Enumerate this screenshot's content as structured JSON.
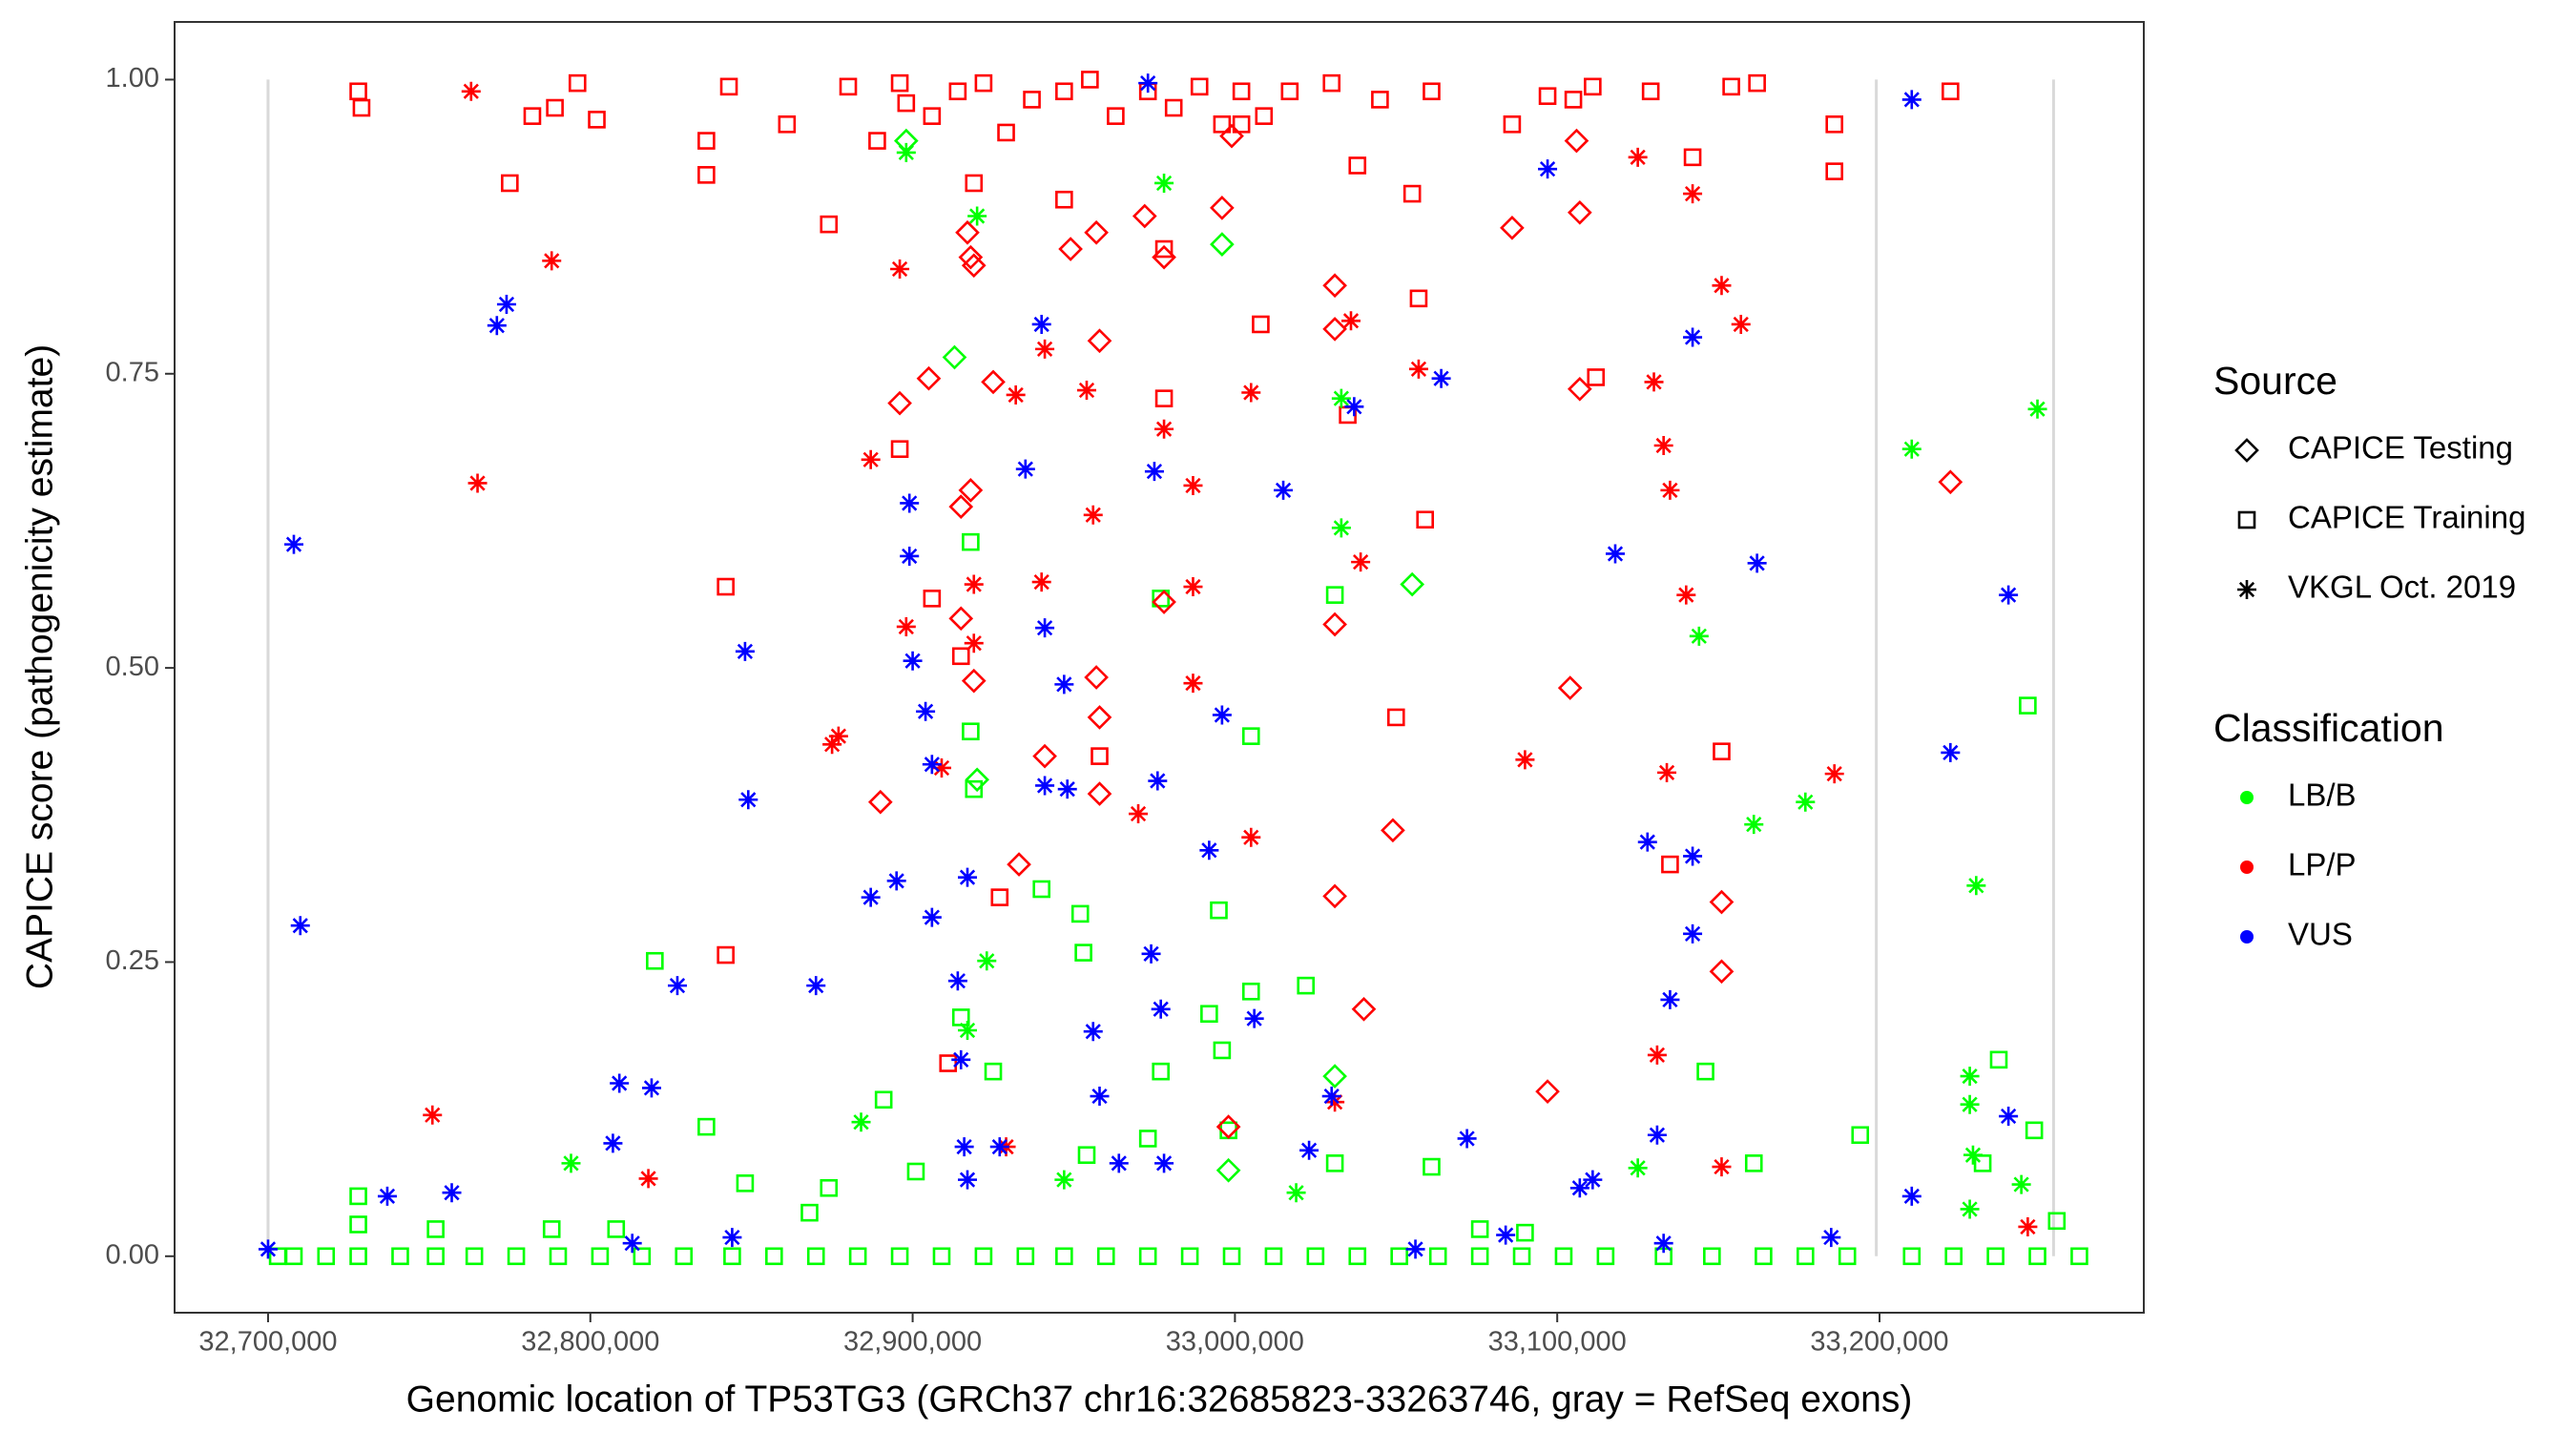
{
  "chart_data": {
    "type": "scatter",
    "x_label": "Genomic location of TP53TG3 (GRCh37 chr16:32685823-33263746, gray = RefSeq exons)",
    "y_label": "CAPICE score (pathogenicity estimate)",
    "xlim": [
      32671000,
      33282000
    ],
    "ylim": [
      -0.048,
      1.049
    ],
    "xticks": [
      {
        "value": 32700000,
        "label": "32,700,000"
      },
      {
        "value": 32800000,
        "label": "32,800,000"
      },
      {
        "value": 32900000,
        "label": "32,900,000"
      },
      {
        "value": 33000000,
        "label": "33,000,000"
      },
      {
        "value": 33100000,
        "label": "33,100,000"
      },
      {
        "value": 33200000,
        "label": "33,200,000"
      }
    ],
    "yticks": [
      {
        "value": 0,
        "label": "0.00"
      },
      {
        "value": 0.25,
        "label": "0.25"
      },
      {
        "value": 0.5,
        "label": "0.50"
      },
      {
        "value": 0.75,
        "label": "0.75"
      },
      {
        "value": 1,
        "label": "1.00"
      }
    ],
    "exons": [
      32700000,
      33199000,
      33254000
    ],
    "exon_color": "#d9d9d9",
    "legend": [
      {
        "title": "Source",
        "items": [
          {
            "label": "CAPICE Testing",
            "shape": "diamond"
          },
          {
            "label": "CAPICE Training",
            "shape": "square"
          },
          {
            "label": "VKGL Oct. 2019",
            "shape": "asterisk"
          }
        ]
      },
      {
        "title": "Classification",
        "items": [
          {
            "label": "LB/B",
            "color": "#00ff00"
          },
          {
            "label": "LP/P",
            "color": "#ff0000"
          },
          {
            "label": "VUS",
            "color": "#0000ff"
          }
        ]
      }
    ],
    "series": [
      {
        "shape": "square",
        "color": "#ff0000",
        "x": [
          32728000,
          32729000,
          32775000,
          32782000,
          32789000,
          32796000,
          32802000,
          32836000,
          32836000,
          32843000,
          32861000,
          32874000,
          32880000,
          32889000,
          32896000,
          32898000,
          32906000,
          32914000,
          32922000,
          32929000,
          32937000,
          32947000,
          32955000,
          32963000,
          32973000,
          32981000,
          32989000,
          32996000,
          33002000,
          33009000,
          33017000,
          33030000,
          33038000,
          33045000,
          33055000,
          33061000,
          33086000,
          33097000,
          33111000,
          33129000,
          33154000,
          33162000,
          33186000,
          33186000,
          33222000,
          32842000,
          32842000,
          32896000,
          32906000,
          32915000,
          32927000,
          32958000,
          32978000,
          33008000,
          33035000,
          33057000,
          33059000,
          33050000,
          33112000,
          33135000,
          33151000,
          33142000,
          33105000,
          32911000,
          32919000,
          32947000,
          32978000,
          33002000
        ],
        "y": [
          0.99,
          0.976,
          0.912,
          0.969,
          0.976,
          0.997,
          0.966,
          0.948,
          0.919,
          0.994,
          0.962,
          0.877,
          0.994,
          0.948,
          0.997,
          0.98,
          0.969,
          0.99,
          0.997,
          0.955,
          0.983,
          0.99,
          1.0,
          0.969,
          0.99,
          0.976,
          0.994,
          0.962,
          0.99,
          0.969,
          0.99,
          0.997,
          0.927,
          0.983,
          0.903,
          0.99,
          0.962,
          0.986,
          0.994,
          0.99,
          0.994,
          0.997,
          0.962,
          0.922,
          0.99,
          0.569,
          0.256,
          0.686,
          0.559,
          0.51,
          0.305,
          0.425,
          0.729,
          0.792,
          0.715,
          0.814,
          0.626,
          0.458,
          0.747,
          0.333,
          0.429,
          0.934,
          0.983,
          0.164,
          0.912,
          0.898,
          0.856,
          0.962
        ]
      },
      {
        "shape": "square",
        "color": "#00ff00",
        "x": [
          32703000,
          32708000,
          32718000,
          32728000,
          32741000,
          32752000,
          32764000,
          32777000,
          32790000,
          32803000,
          32816000,
          32829000,
          32844000,
          32857000,
          32870000,
          32883000,
          32896000,
          32909000,
          32922000,
          32935000,
          32947000,
          32960000,
          32973000,
          32986000,
          32999000,
          33012000,
          33025000,
          33038000,
          33051000,
          33063000,
          33076000,
          33089000,
          33102000,
          33115000,
          33133000,
          33148000,
          33164000,
          33177000,
          33190000,
          33210000,
          33223000,
          33236000,
          33249000,
          33262000,
          32728000,
          32728000,
          32752000,
          32788000,
          32808000,
          32820000,
          32836000,
          32848000,
          32868000,
          32874000,
          32891000,
          32901000,
          32915000,
          32918000,
          32919000,
          32925000,
          32940000,
          32952000,
          32953000,
          32954000,
          32973000,
          32977000,
          32992000,
          32995000,
          32996000,
          32998000,
          33005000,
          33005000,
          33022000,
          33031000,
          33031000,
          33061000,
          33076000,
          33090000,
          33146000,
          33161000,
          33194000,
          33232000,
          33237000,
          33246000,
          33248000,
          33255000,
          32977000,
          32918000
        ],
        "y": [
          0,
          0,
          0,
          0,
          0,
          0,
          0,
          0,
          0,
          0,
          0,
          0,
          0,
          0,
          0,
          0,
          0,
          0,
          0,
          0,
          0,
          0,
          0,
          0,
          0,
          0,
          0,
          0,
          0,
          0,
          0,
          0,
          0,
          0,
          0,
          0,
          0,
          0,
          0,
          0,
          0,
          0,
          0,
          0,
          0.051,
          0.027,
          0.023,
          0.023,
          0.023,
          0.251,
          0.11,
          0.062,
          0.037,
          0.058,
          0.133,
          0.072,
          0.203,
          0.446,
          0.397,
          0.157,
          0.312,
          0.291,
          0.258,
          0.086,
          0.1,
          0.157,
          0.206,
          0.294,
          0.175,
          0.107,
          0.442,
          0.225,
          0.23,
          0.562,
          0.079,
          0.076,
          0.023,
          0.02,
          0.157,
          0.079,
          0.103,
          0.079,
          0.167,
          0.468,
          0.107,
          0.03,
          0.559,
          0.607
        ]
      },
      {
        "shape": "diamond",
        "color": "#ff0000",
        "x": [
          32896000,
          32905000,
          32915000,
          32915000,
          32917000,
          32918000,
          32919000,
          32918000,
          32925000,
          32933000,
          32941000,
          32949000,
          32957000,
          32957000,
          32958000,
          32958000,
          32958000,
          32972000,
          32978000,
          32978000,
          32996000,
          32999000,
          33031000,
          33031000,
          33031000,
          33031000,
          33049000,
          33086000,
          33097000,
          33104000,
          33106000,
          33107000,
          33107000,
          33222000,
          33151000,
          33151000,
          32890000,
          33040000,
          32998000,
          32919000
        ],
        "y": [
          0.725,
          0.746,
          0.637,
          0.542,
          0.87,
          0.849,
          0.842,
          0.651,
          0.743,
          0.333,
          0.425,
          0.856,
          0.87,
          0.492,
          0.458,
          0.393,
          0.778,
          0.884,
          0.849,
          0.556,
          0.891,
          0.952,
          0.825,
          0.788,
          0.537,
          0.306,
          0.362,
          0.874,
          0.14,
          0.483,
          0.948,
          0.737,
          0.887,
          0.658,
          0.242,
          0.301,
          0.386,
          0.21,
          0.11,
          0.489
        ]
      },
      {
        "shape": "diamond",
        "color": "#00ff00",
        "x": [
          32898000,
          32913000,
          32996000,
          32998000,
          33031000,
          33055000,
          32920000
        ],
        "y": [
          0.948,
          0.764,
          0.86,
          0.073,
          0.153,
          0.571,
          0.405
        ]
      },
      {
        "shape": "asterisk",
        "color": "#ff0000",
        "x": [
          32763000,
          32765000,
          32751000,
          32788000,
          32818000,
          32875000,
          32877000,
          32887000,
          32896000,
          32898000,
          32909000,
          32919000,
          32919000,
          32932000,
          32941000,
          32940000,
          32954000,
          32956000,
          32970000,
          32978000,
          32987000,
          32987000,
          32987000,
          33005000,
          33005000,
          33036000,
          33039000,
          33057000,
          33090000,
          33130000,
          33133000,
          33135000,
          33134000,
          33140000,
          33142000,
          33151000,
          33157000,
          33186000,
          33131000,
          33151000,
          33125000,
          33246000,
          33031000,
          32929000
        ],
        "y": [
          0.99,
          0.657,
          0.12,
          0.846,
          0.066,
          0.435,
          0.442,
          0.677,
          0.839,
          0.535,
          0.415,
          0.571,
          0.521,
          0.732,
          0.771,
          0.573,
          0.736,
          0.63,
          0.376,
          0.703,
          0.655,
          0.569,
          0.487,
          0.356,
          0.734,
          0.795,
          0.59,
          0.754,
          0.422,
          0.743,
          0.689,
          0.651,
          0.411,
          0.562,
          0.903,
          0.825,
          0.792,
          0.41,
          0.171,
          0.076,
          0.934,
          0.025,
          0.131,
          0.093
        ]
      },
      {
        "shape": "asterisk",
        "color": "#00ff00",
        "x": [
          32898000,
          32920000,
          32923000,
          32884000,
          32794000,
          33033000,
          33033000,
          33019000,
          33144000,
          33161000,
          33177000,
          33210000,
          33230000,
          33249000,
          33228000,
          33229000,
          33228000,
          33244000,
          33228000,
          32917000,
          32978000,
          33125000,
          32947000
        ],
        "y": [
          0.938,
          0.884,
          0.251,
          0.114,
          0.079,
          0.729,
          0.619,
          0.054,
          0.527,
          0.367,
          0.386,
          0.686,
          0.315,
          0.72,
          0.153,
          0.086,
          0.129,
          0.061,
          0.04,
          0.192,
          0.912,
          0.075,
          0.065
        ]
      },
      {
        "shape": "asterisk",
        "color": "#0000ff",
        "x": [
          32708000,
          32710000,
          32700000,
          32737000,
          32757000,
          32771000,
          32774000,
          32807000,
          32809000,
          32819000,
          32827000,
          32848000,
          32849000,
          32870000,
          32887000,
          32895000,
          32899000,
          32899000,
          32904000,
          32900000,
          32906000,
          32906000,
          32917000,
          32914000,
          32915000,
          32916000,
          32917000,
          32927000,
          32935000,
          32940000,
          32941000,
          32941000,
          32947000,
          32948000,
          32956000,
          32958000,
          32964000,
          32973000,
          32975000,
          32976000,
          32974000,
          32977000,
          32978000,
          32992000,
          32996000,
          33006000,
          33015000,
          33023000,
          33030000,
          33037000,
          33064000,
          33072000,
          33097000,
          33107000,
          33111000,
          33118000,
          33128000,
          33131000,
          33135000,
          33142000,
          33142000,
          33142000,
          33162000,
          33210000,
          33222000,
          33210000,
          33240000,
          33240000,
          33084000,
          33133000,
          33056000,
          33185000,
          32844000,
          32813000
        ],
        "y": [
          0.605,
          0.281,
          0.006,
          0.051,
          0.054,
          0.791,
          0.809,
          0.096,
          0.147,
          0.143,
          0.23,
          0.514,
          0.388,
          0.23,
          0.305,
          0.319,
          0.64,
          0.595,
          0.463,
          0.506,
          0.418,
          0.288,
          0.322,
          0.234,
          0.167,
          0.093,
          0.065,
          0.093,
          0.669,
          0.792,
          0.534,
          0.4,
          0.486,
          0.397,
          0.191,
          0.136,
          0.079,
          0.997,
          0.667,
          0.404,
          0.257,
          0.21,
          0.079,
          0.345,
          0.46,
          0.202,
          0.651,
          0.09,
          0.136,
          0.722,
          0.746,
          0.1,
          0.924,
          0.058,
          0.065,
          0.597,
          0.352,
          0.103,
          0.218,
          0.274,
          0.781,
          0.34,
          0.589,
          0.983,
          0.428,
          0.051,
          0.562,
          0.119,
          0.018,
          0.011,
          0.006,
          0.016,
          0.016,
          0.011
        ]
      }
    ]
  }
}
